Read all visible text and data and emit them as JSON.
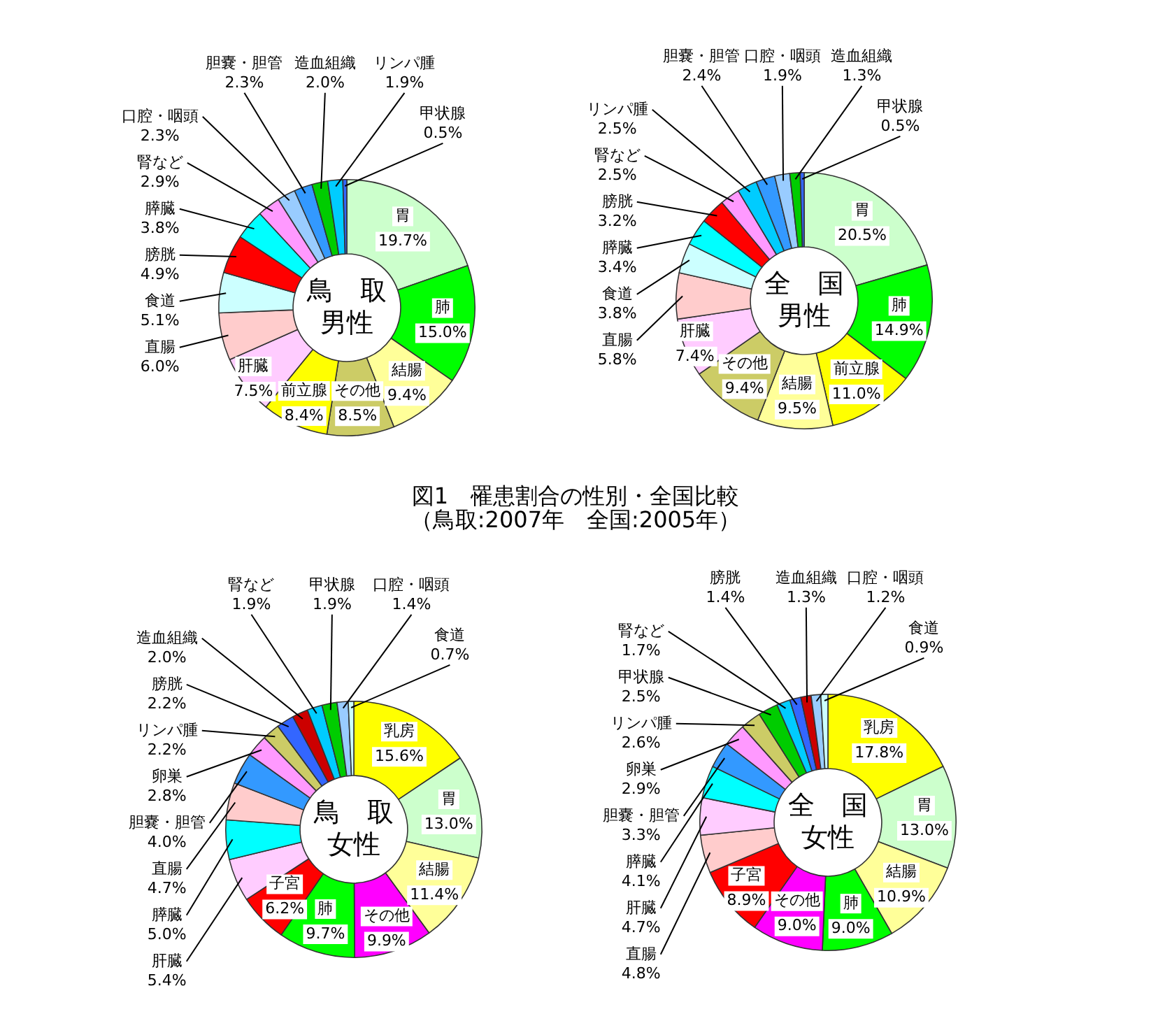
{
  "chart_data": [
    {
      "type": "donut",
      "title": "鳥　取",
      "subtitle": "男性",
      "categories": [
        "胃",
        "肺",
        "結腸",
        "その他",
        "前立腺",
        "肝臓",
        "直腸",
        "食道",
        "膀胱",
        "膵臓",
        "腎など",
        "口腔・咽頭",
        "胆嚢・胆管",
        "造血組織",
        "リンパ腫",
        "甲状腺"
      ],
      "values": [
        19.7,
        15.0,
        9.4,
        8.5,
        8.4,
        7.5,
        6.0,
        5.1,
        4.9,
        3.8,
        2.9,
        2.3,
        2.3,
        2.0,
        1.9,
        0.5
      ],
      "value_labels": [
        "19.7%",
        "15.0%",
        "9.4%",
        "8.5%",
        "8.4%",
        "7.5%",
        "6.0%",
        "5.1%",
        "4.9%",
        "3.8%",
        "2.9%",
        "2.3%",
        "2.3%",
        "2.0%",
        "1.9%",
        "0.5%"
      ],
      "colors": [
        "#ccffcc",
        "#00ff00",
        "#ffff99",
        "#cccc66",
        "#ffff00",
        "#ffccff",
        "#ffcccc",
        "#ccffff",
        "#ff0000",
        "#00ffff",
        "#ff99ff",
        "#99ccff",
        "#3399ff",
        "#00cc00",
        "#00ccff",
        "#3366ff"
      ],
      "annotations": [
        "図1　罹患割合の性別・全国比較",
        "（鳥取:2007年　全国:2005年）"
      ]
    },
    {
      "type": "donut",
      "title": "全　国",
      "subtitle": "男性",
      "categories": [
        "胃",
        "肺",
        "前立腺",
        "結腸",
        "その他",
        "肝臓",
        "直腸",
        "食道",
        "膵臓",
        "膀胱",
        "腎など",
        "リンパ腫",
        "胆嚢・胆管",
        "口腔・咽頭",
        "造血組織",
        "甲状腺"
      ],
      "values": [
        20.5,
        14.9,
        11.0,
        9.5,
        9.4,
        7.4,
        5.8,
        3.8,
        3.4,
        3.2,
        2.5,
        2.5,
        2.4,
        1.9,
        1.3,
        0.5
      ],
      "value_labels": [
        "20.5%",
        "14.9%",
        "11.0%",
        "9.5%",
        "9.4%",
        "7.4%",
        "5.8%",
        "3.8%",
        "3.4%",
        "3.2%",
        "2.5%",
        "2.5%",
        "2.4%",
        "1.9%",
        "1.3%",
        "0.5%"
      ],
      "colors": [
        "#ccffcc",
        "#00ff00",
        "#ffff00",
        "#ffff99",
        "#cccc66",
        "#ffccff",
        "#ffcccc",
        "#ccffff",
        "#00ffff",
        "#ff0000",
        "#ff99ff",
        "#00ccff",
        "#3399ff",
        "#99ccff",
        "#00cc00",
        "#3366ff"
      ]
    },
    {
      "type": "donut",
      "title": "鳥　取",
      "subtitle": "女性",
      "categories": [
        "乳房",
        "胃",
        "結腸",
        "その他",
        "肺",
        "子宮",
        "肝臓",
        "膵臓",
        "直腸",
        "胆嚢・胆管",
        "卵巣",
        "リンパ腫",
        "膀胱",
        "造血組織",
        "腎など",
        "甲状腺",
        "口腔・咽頭",
        "食道"
      ],
      "values": [
        15.6,
        13.0,
        11.4,
        9.9,
        9.7,
        6.2,
        5.4,
        5.0,
        4.7,
        4.0,
        2.8,
        2.2,
        2.2,
        2.0,
        1.9,
        1.9,
        1.4,
        0.7
      ],
      "value_labels": [
        "15.6%",
        "13.0%",
        "11.4%",
        "9.9%",
        "9.7%",
        "6.2%",
        "5.4%",
        "5.0%",
        "4.7%",
        "4.0%",
        "2.8%",
        "2.2%",
        "2.2%",
        "2.0%",
        "1.9%",
        "1.9%",
        "1.4%",
        "0.7%"
      ],
      "colors": [
        "#ffff00",
        "#ccffcc",
        "#ffff99",
        "#ff00ff",
        "#00ff00",
        "#ff0000",
        "#ffccff",
        "#00ffff",
        "#ffcccc",
        "#3399ff",
        "#ff99ff",
        "#cccc66",
        "#3366ff",
        "#cc0000",
        "#00ccff",
        "#00cc00",
        "#99ccff",
        "#ccffff"
      ]
    },
    {
      "type": "donut",
      "title": "全　国",
      "subtitle": "女性",
      "categories": [
        "乳房",
        "胃",
        "結腸",
        "肺",
        "その他",
        "子宮",
        "直腸",
        "肝臓",
        "膵臓",
        "胆嚢・胆管",
        "卵巣",
        "リンパ腫",
        "甲状腺",
        "腎など",
        "膀胱",
        "造血組織",
        "口腔・咽頭",
        "食道"
      ],
      "values": [
        17.8,
        13.0,
        10.9,
        9.0,
        9.0,
        8.9,
        4.8,
        4.7,
        4.1,
        3.3,
        2.9,
        2.6,
        2.5,
        1.7,
        1.4,
        1.3,
        1.2,
        0.9
      ],
      "value_labels": [
        "17.8%",
        "13.0%",
        "10.9%",
        "9.0%",
        "9.0%",
        "8.9%",
        "4.8%",
        "4.7%",
        "4.1%",
        "3.3%",
        "2.9%",
        "2.6%",
        "2.5%",
        "1.7%",
        "1.4%",
        "1.3%",
        "1.2%",
        "0.9%"
      ],
      "colors": [
        "#ffff00",
        "#ccffcc",
        "#ffff99",
        "#00ff00",
        "#ff00ff",
        "#ff0000",
        "#ffcccc",
        "#ffccff",
        "#00ffff",
        "#3399ff",
        "#ff99ff",
        "#cccc66",
        "#00cc00",
        "#00ccff",
        "#3366ff",
        "#cc0000",
        "#99ccff",
        "#ccffff"
      ]
    }
  ]
}
